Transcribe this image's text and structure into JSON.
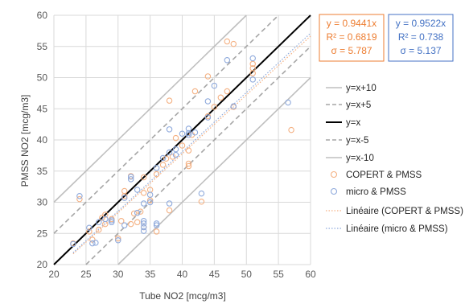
{
  "chart_data": {
    "type": "scatter",
    "xlabel": "Tube NO2 [mcg/m3]",
    "ylabel": "PMSS NO2 [mcg/m3]",
    "xlim": [
      20,
      60
    ],
    "ylim": [
      20,
      60
    ],
    "x_ticks": [
      "20",
      "25",
      "30",
      "35",
      "40",
      "45",
      "50",
      "55",
      "60"
    ],
    "y_ticks": [
      "20",
      "25",
      "30",
      "35",
      "40",
      "45",
      "50",
      "55",
      "60"
    ],
    "grid": true,
    "legend_position": "right",
    "reference_lines": [
      {
        "name": "y=x+10",
        "offset": 10,
        "style": "solid",
        "color": "#bfbfbf"
      },
      {
        "name": "y=x+5",
        "offset": 5,
        "style": "dashed",
        "color": "#a6a6a6"
      },
      {
        "name": "y=x",
        "offset": 0,
        "style": "solid",
        "color": "#000000"
      },
      {
        "name": "y=x-5",
        "offset": -5,
        "style": "dashed",
        "color": "#a6a6a6"
      },
      {
        "name": "y=x-10",
        "offset": -10,
        "style": "solid",
        "color": "#bfbfbf"
      }
    ],
    "series": [
      {
        "name": "COPERT & PMSS",
        "color": "#f4b183",
        "x": [
          23,
          24,
          25.5,
          26,
          27,
          27.5,
          28,
          28,
          29,
          30,
          30.5,
          31,
          31,
          32,
          32,
          32.5,
          33,
          33.5,
          34,
          34,
          34,
          35,
          35,
          36,
          36,
          37,
          37.5,
          38,
          38,
          38.5,
          39,
          40,
          41,
          41,
          41,
          41.5,
          42,
          43,
          44,
          44,
          45,
          46,
          47,
          47,
          48,
          48,
          51,
          51,
          51,
          57
        ],
        "y": [
          23.4,
          30.5,
          25.3,
          24,
          25.6,
          27.5,
          26.5,
          28,
          27.3,
          24.2,
          27,
          31.8,
          31,
          34.2,
          26.5,
          28.2,
          26.8,
          28.5,
          31.5,
          34,
          26,
          30.3,
          32,
          34.5,
          25.3,
          36,
          37,
          46.3,
          28.7,
          37.3,
          40.3,
          39.1,
          38.3,
          36.2,
          35.8,
          40.8,
          47.8,
          30.1,
          50.2,
          43.8,
          45.3,
          46.8,
          47.8,
          55.8,
          55.4,
          45.3,
          51.5,
          52.2,
          50.7,
          41.6
        ]
      },
      {
        "name": "micro & PMSS",
        "color": "#8faadc",
        "x": [
          23,
          24,
          25.5,
          26,
          26.5,
          27,
          28,
          29,
          29,
          30,
          31,
          31,
          32,
          32,
          33,
          33,
          34,
          34,
          34,
          34,
          34,
          35,
          35,
          36,
          36,
          36,
          37,
          38,
          38,
          38,
          39,
          39,
          40,
          41,
          41,
          41,
          42,
          43,
          44,
          44,
          45,
          47,
          48,
          51,
          51,
          56.5
        ],
        "y": [
          23.3,
          31,
          25.9,
          23.4,
          23.5,
          26.8,
          27.3,
          27.1,
          26.8,
          23.9,
          30.7,
          26.3,
          34.1,
          33.7,
          32,
          28.3,
          25.4,
          26,
          26.6,
          27,
          29.8,
          31.2,
          30,
          26.3,
          26.6,
          35.5,
          37.1,
          38,
          41.7,
          29.8,
          38.5,
          37.6,
          41,
          41.8,
          40.8,
          41.1,
          41.2,
          31.4,
          43.6,
          46.2,
          48.7,
          52.8,
          45.4,
          53.1,
          49.7,
          46
        ]
      }
    ],
    "trendlines": [
      {
        "name": "Linéaire (COPERT & PMSS)",
        "slope": 0.9441,
        "color": "#f4b183",
        "x_range": [
          23,
          60
        ]
      },
      {
        "name": "Linéaire (micro & PMSS)",
        "slope": 0.9522,
        "color": "#8faadc",
        "x_range": [
          23,
          60
        ]
      }
    ],
    "stat_boxes": [
      {
        "equation": "y = 0.9441x",
        "r2": "R² = 0.6819",
        "sigma": "σ = 5.787",
        "color": "#ed7d31"
      },
      {
        "equation": "y = 0.9522x",
        "r2": "R² = 0.738",
        "sigma": "σ = 5.137",
        "color": "#4472c4"
      }
    ]
  }
}
